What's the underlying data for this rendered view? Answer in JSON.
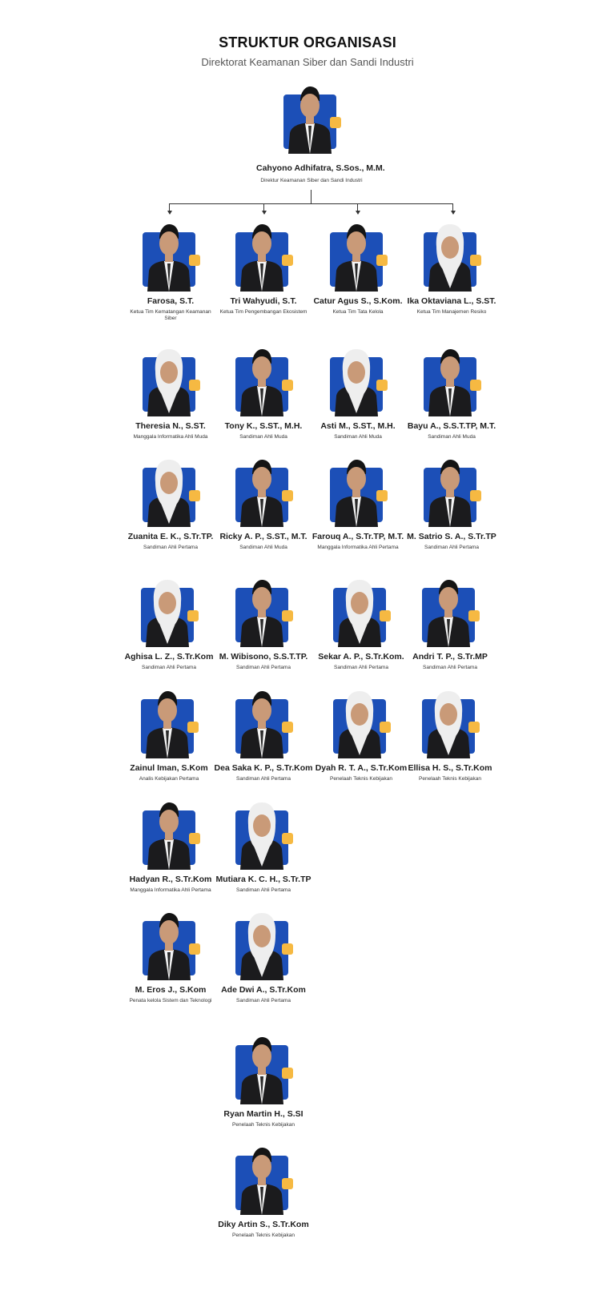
{
  "header": {
    "title": "STRUKTUR ORGANISASI",
    "subtitle": "Direktorat Keamanan Siber dan Sandi Industri"
  },
  "director": {
    "name": "Cahyono Adhifatra, S.Sos., M.M.",
    "role": "Direktur Keamanan Siber dan Sandi Industri",
    "attire": "male"
  },
  "members": [
    {
      "name": "Farosa, S.T.",
      "role": "Ketua Tim Kematangan Keamanan Siber",
      "attire": "male"
    },
    {
      "name": "Tri Wahyudi, S.T.",
      "role": "Ketua Tim Pengembangan Ekosistem",
      "attire": "male"
    },
    {
      "name": "Catur Agus S., S.Kom.",
      "role": "Ketua Tim Tata Kelola",
      "attire": "male"
    },
    {
      "name": "Ika Oktaviana L., S.ST.",
      "role": "Ketua Tim Manajemen Resiko",
      "attire": "hijab"
    },
    {
      "name": "Theresia N., S.ST.",
      "role": "Manggala Informatika Ahli Muda",
      "attire": "hijab"
    },
    {
      "name": "Tony K., S.ST., M.H.",
      "role": "Sandiman Ahli Muda",
      "attire": "male"
    },
    {
      "name": "Asti M., S.ST., M.H.",
      "role": "Sandiman Ahli Muda",
      "attire": "hijab"
    },
    {
      "name": "Bayu A., S.S.T.TP, M.T.",
      "role": "Sandiman Ahli Muda",
      "attire": "male"
    },
    {
      "name": "Zuanita E. K., S.Tr.TP.",
      "role": "Sandiman Ahli Pertama",
      "attire": "hijab"
    },
    {
      "name": "Ricky A. P., S.ST., M.T.",
      "role": "Sandiman Ahli Muda",
      "attire": "male"
    },
    {
      "name": "Farouq A., S.Tr.TP, M.T.",
      "role": "Manggala Informatika Ahli Pertama",
      "attire": "male"
    },
    {
      "name": "M. Satrio S. A., S.Tr.TP",
      "role": "Sandiman Ahli Pertama",
      "attire": "male"
    },
    {
      "name": "Aghisa L. Z., S.Tr.Kom",
      "role": "Sandiman Ahli Pertama",
      "attire": "hijab"
    },
    {
      "name": "M. Wibisono, S.S.T.TP.",
      "role": "Sandiman Ahli Pertama",
      "attire": "male"
    },
    {
      "name": "Sekar A. P., S.Tr.Kom.",
      "role": "Sandiman Ahli Pertama",
      "attire": "hijab"
    },
    {
      "name": "Andri T. P., S.Tr.MP",
      "role": "Sandiman Ahli Pertama",
      "attire": "male"
    },
    {
      "name": "Zainul Iman, S.Kom",
      "role": "Analis Kebijakan Pertama",
      "attire": "male"
    },
    {
      "name": "Dea Saka K. P., S.Tr.Kom",
      "role": "Sandiman Ahli Pertama",
      "attire": "male"
    },
    {
      "name": "Dyah R. T. A., S.Tr.Kom",
      "role": "Penelaah Teknis Kebijakan",
      "attire": "hijab"
    },
    {
      "name": "Ellisa H. S., S.Tr.Kom",
      "role": "Penelaah Teknis Kebijakan",
      "attire": "hijab"
    },
    {
      "name": "Hadyan R., S.Tr.Kom",
      "role": "Manggala Informatika Ahli Pertama",
      "attire": "male"
    },
    {
      "name": "Mutiara K. C. H., S.Tr.TP",
      "role": "Sandiman Ahli Pertama",
      "attire": "hijab"
    },
    {
      "name": "M. Eros J., S.Kom",
      "role": "Penata kelola Sistem dan Teknologi",
      "attire": "male"
    },
    {
      "name": "Ade Dwi A., S.Tr.Kom",
      "role": "Sandiman Ahli Pertama",
      "attire": "hijab"
    },
    {
      "name": "Ryan Martin H., S.SI",
      "role": "Penelaah Teknis Kebijakan",
      "attire": "male"
    },
    {
      "name": "Diky Artin S., S.Tr.Kom",
      "role": "Penelaah Teknis Kebijakan",
      "attire": "male"
    }
  ],
  "colors": {
    "photo_background": "#1c4fb7",
    "badge": "#f6b942",
    "suit": "#1b1b1d",
    "skin": "#c99a78",
    "hijab": "#eeeeee"
  }
}
